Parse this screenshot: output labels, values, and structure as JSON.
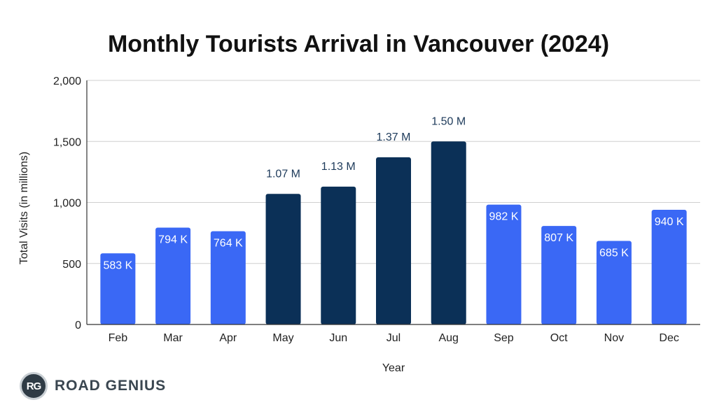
{
  "logo": {
    "badge": "RG",
    "text": "ROAD GENIUS"
  },
  "colors": {
    "light_bar": "#3a68f5",
    "dark_bar": "#0b3057",
    "grid": "#cfcfcf",
    "axis": "#333333"
  },
  "chart_data": {
    "type": "bar",
    "title": "Monthly Tourists Arrival in Vancouver (2024)",
    "xlabel": "Year",
    "ylabel": "Total Visits (in millions)",
    "ylim": [
      0,
      2000
    ],
    "yticks": [
      0,
      500,
      1000,
      1500,
      2000
    ],
    "ytick_labels": [
      "0",
      "500",
      "1,000",
      "1,500",
      "2,000"
    ],
    "grid": true,
    "categories": [
      "Feb",
      "Mar",
      "Apr",
      "May",
      "Jun",
      "Jul",
      "Aug",
      "Sep",
      "Oct",
      "Nov",
      "Dec"
    ],
    "values": [
      583,
      794,
      764,
      1070,
      1130,
      1370,
      1500,
      982,
      807,
      685,
      940
    ],
    "labels": [
      "583 K",
      "794 K",
      "764 K",
      "1.07 M",
      "1.13 M",
      "1.37 M",
      "1.50  M",
      "982 K",
      "807 K",
      "685 K",
      "940 K"
    ],
    "highlighted": [
      false,
      false,
      false,
      true,
      true,
      true,
      true,
      false,
      false,
      false,
      false
    ]
  }
}
